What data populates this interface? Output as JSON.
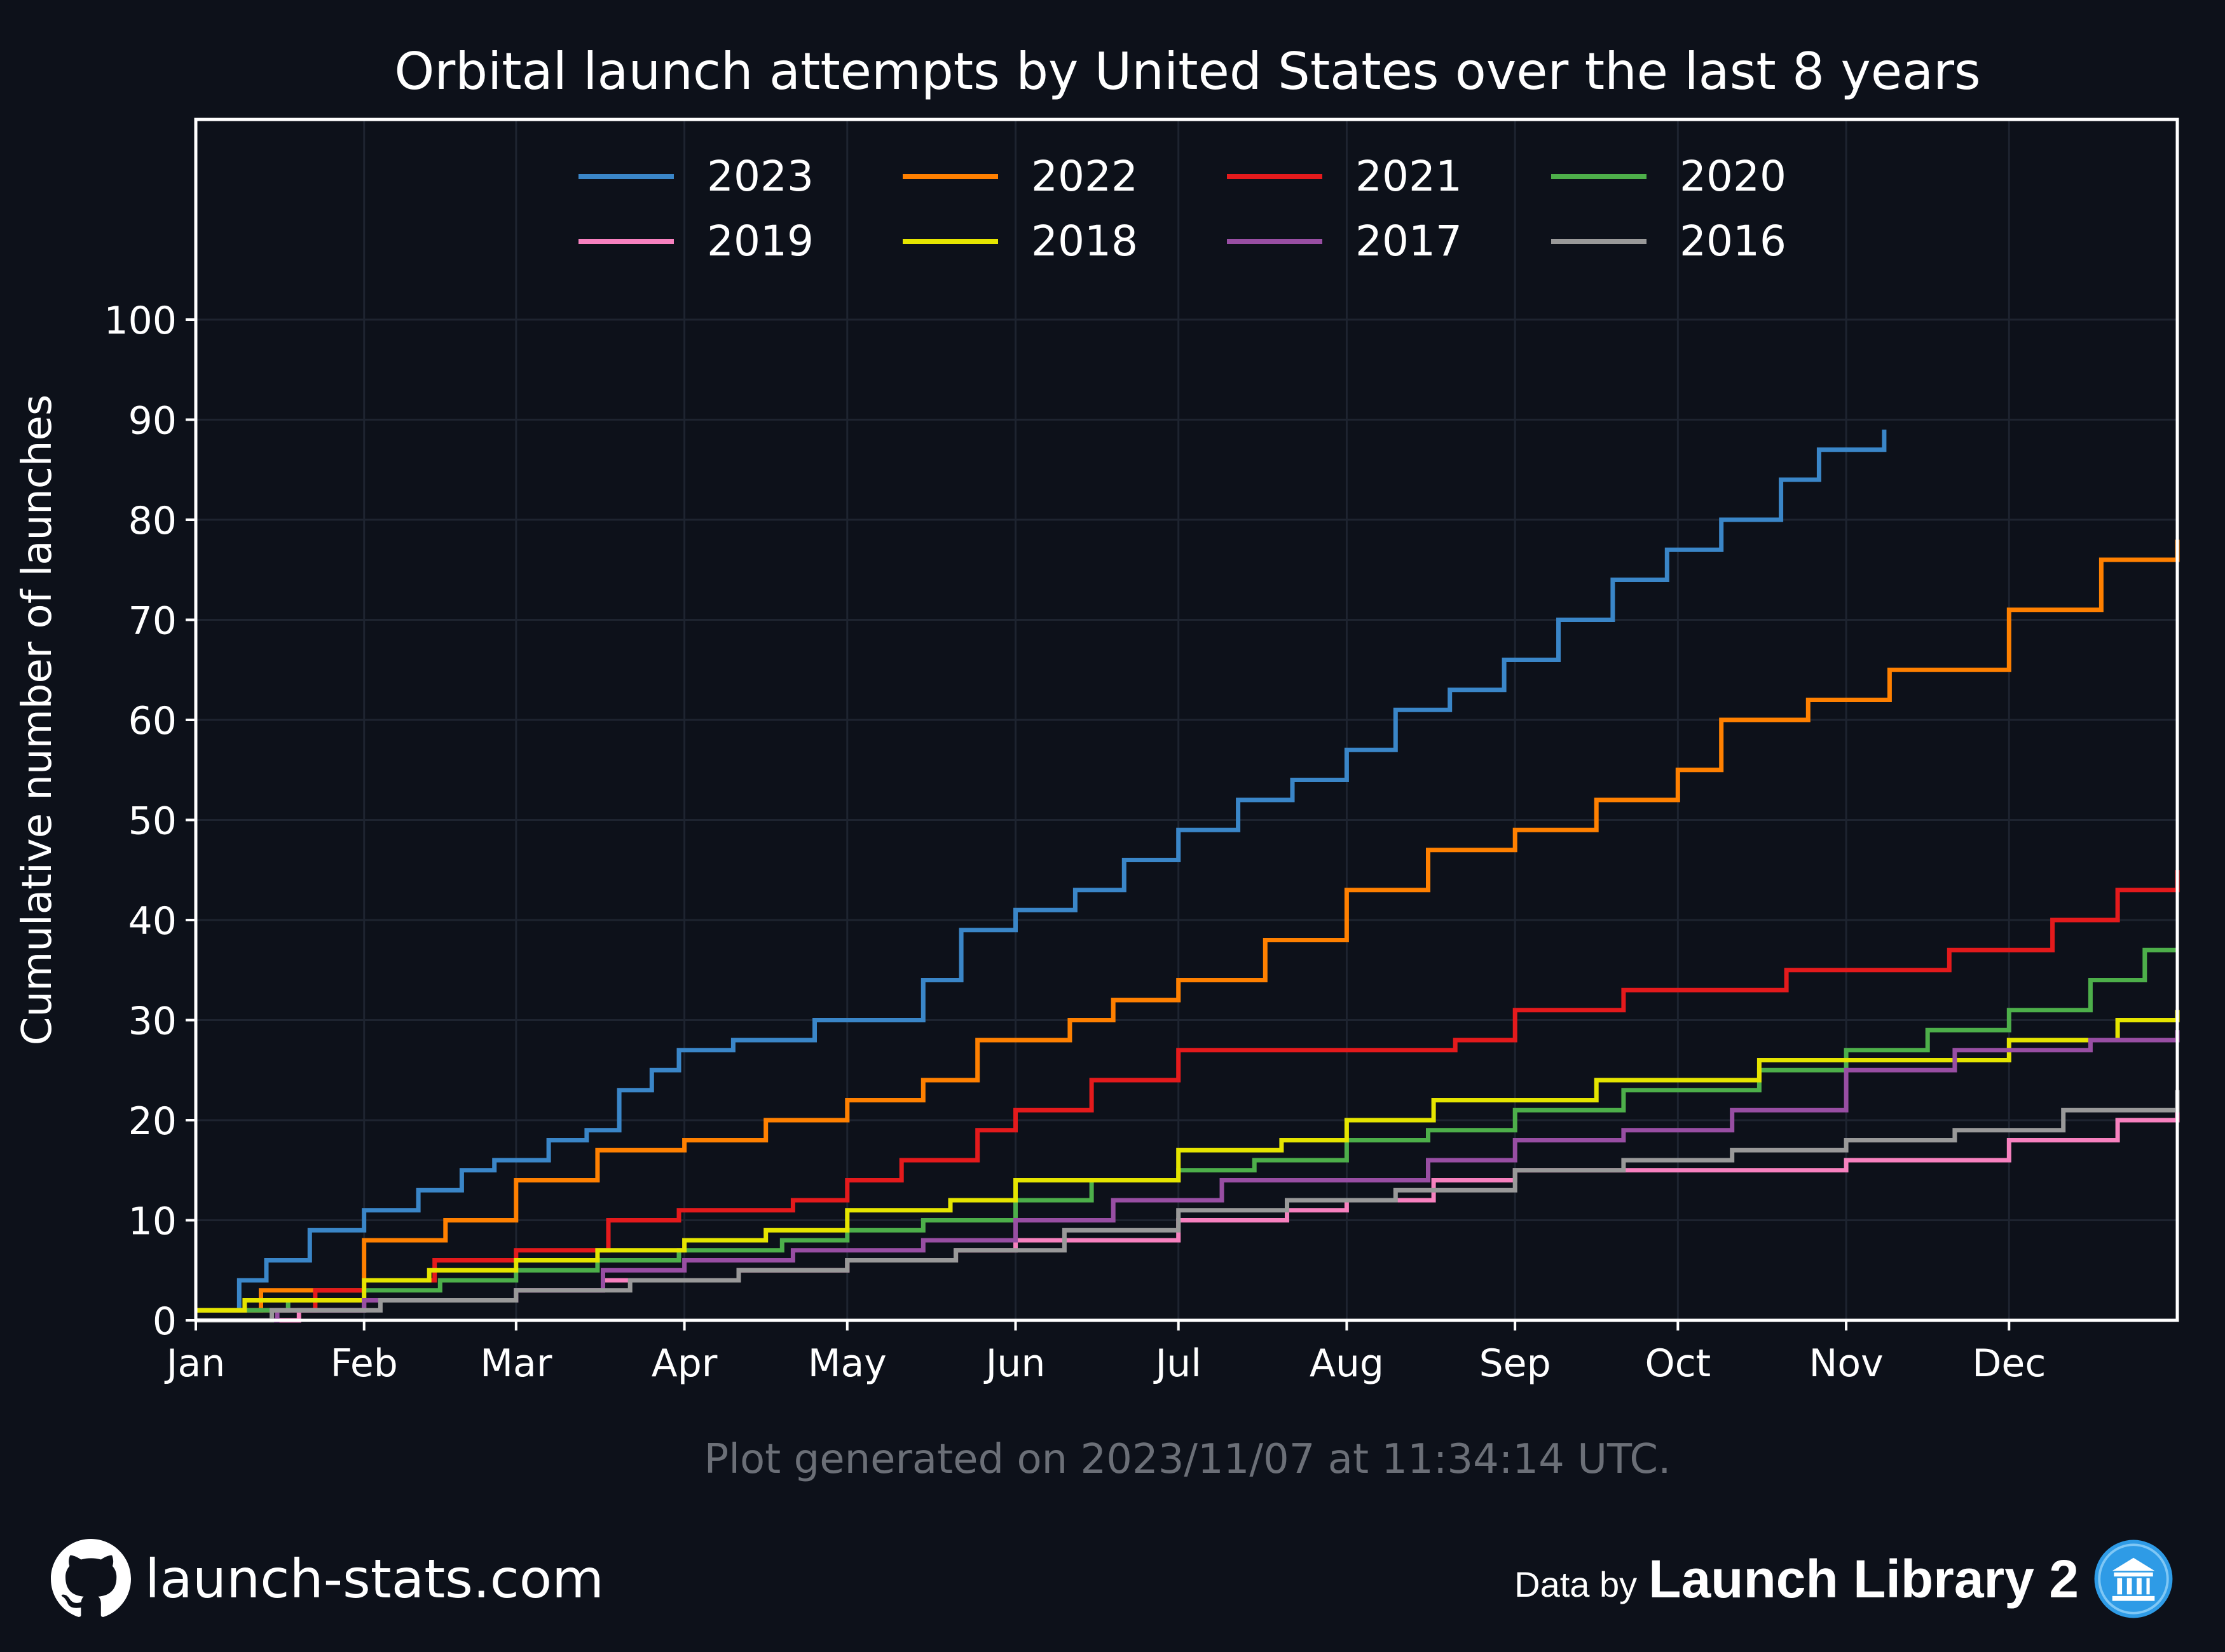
{
  "chart_data": {
    "type": "line",
    "title": "Orbital launch attempts by United States over the last 8 years",
    "ylabel": "Cumulative number of launches",
    "xlabel": "",
    "x_unit": "day of year",
    "xlim": [
      1,
      366
    ],
    "ylim": [
      0,
      120
    ],
    "yticks": [
      0,
      10,
      20,
      30,
      40,
      50,
      60,
      70,
      80,
      90,
      100
    ],
    "xticks": [
      {
        "label": "Jan",
        "day": 1
      },
      {
        "label": "Feb",
        "day": 32
      },
      {
        "label": "Mar",
        "day": 60
      },
      {
        "label": "Apr",
        "day": 91
      },
      {
        "label": "May",
        "day": 121
      },
      {
        "label": "Jun",
        "day": 152
      },
      {
        "label": "Jul",
        "day": 182
      },
      {
        "label": "Aug",
        "day": 213
      },
      {
        "label": "Sep",
        "day": 244
      },
      {
        "label": "Oct",
        "day": 274
      },
      {
        "label": "Nov",
        "day": 305
      },
      {
        "label": "Dec",
        "day": 335
      }
    ],
    "grid": true,
    "legend_position": "top-center",
    "series": [
      {
        "name": "2023",
        "color": "#3a86c8",
        "x": [
          1,
          9,
          14,
          22,
          32,
          42,
          50,
          56,
          66,
          73,
          79,
          85,
          90,
          100,
          115,
          135,
          142,
          152,
          163,
          172,
          182,
          193,
          203,
          213,
          222,
          232,
          242,
          252,
          262,
          272,
          282,
          293,
          300,
          312
        ],
        "y": [
          1,
          4,
          6,
          9,
          11,
          13,
          15,
          16,
          18,
          19,
          23,
          25,
          27,
          28,
          30,
          34,
          39,
          41,
          43,
          46,
          49,
          52,
          54,
          57,
          61,
          63,
          66,
          70,
          74,
          77,
          80,
          84,
          87,
          89
        ]
      },
      {
        "name": "2022",
        "color": "#ff8000",
        "x": [
          1,
          13,
          32,
          47,
          60,
          75,
          91,
          106,
          121,
          135,
          145,
          162,
          170,
          182,
          198,
          213,
          228,
          244,
          259,
          274,
          282,
          298,
          313,
          335,
          352,
          366
        ],
        "y": [
          1,
          3,
          8,
          10,
          14,
          17,
          18,
          20,
          22,
          24,
          28,
          30,
          32,
          34,
          38,
          43,
          47,
          49,
          52,
          55,
          60,
          62,
          65,
          71,
          76,
          78
        ]
      },
      {
        "name": "2021",
        "color": "#e41a1c",
        "x": [
          1,
          23,
          32,
          45,
          60,
          77,
          90,
          111,
          121,
          131,
          145,
          152,
          166,
          182,
          213,
          233,
          244,
          264,
          294,
          311,
          324,
          343,
          355,
          366
        ],
        "y": [
          1,
          3,
          4,
          6,
          7,
          10,
          11,
          12,
          14,
          16,
          19,
          21,
          24,
          27,
          27,
          28,
          31,
          33,
          35,
          35,
          37,
          40,
          43,
          45
        ]
      },
      {
        "name": "2020",
        "color": "#4daf4a",
        "x": [
          1,
          18,
          32,
          46,
          60,
          75,
          90,
          109,
          121,
          135,
          152,
          166,
          182,
          196,
          213,
          228,
          244,
          264,
          289,
          305,
          320,
          335,
          350,
          360,
          366
        ],
        "y": [
          1,
          2,
          3,
          4,
          5,
          6,
          7,
          8,
          9,
          10,
          12,
          14,
          15,
          16,
          18,
          19,
          21,
          23,
          25,
          27,
          29,
          31,
          34,
          37,
          37
        ]
      },
      {
        "name": "2019",
        "color": "#f781bf",
        "x": [
          1,
          20,
          32,
          51,
          60,
          76,
          91,
          101,
          121,
          141,
          152,
          182,
          202,
          213,
          229,
          244,
          284,
          305,
          335,
          355,
          366
        ],
        "y": [
          0,
          1,
          2,
          2,
          3,
          4,
          4,
          5,
          6,
          7,
          8,
          10,
          11,
          12,
          14,
          15,
          15,
          16,
          18,
          20,
          21
        ]
      },
      {
        "name": "2018",
        "color": "#e5e500",
        "x": [
          1,
          10,
          32,
          44,
          60,
          75,
          91,
          106,
          121,
          140,
          152,
          182,
          201,
          213,
          229,
          244,
          259,
          274,
          289,
          305,
          335,
          355,
          366
        ],
        "y": [
          1,
          2,
          4,
          5,
          6,
          7,
          8,
          9,
          11,
          12,
          14,
          17,
          18,
          20,
          22,
          22,
          24,
          24,
          26,
          26,
          28,
          30,
          31
        ]
      },
      {
        "name": "2017",
        "color": "#984ea3",
        "x": [
          1,
          16,
          32,
          60,
          76,
          91,
          111,
          135,
          152,
          170,
          190,
          213,
          228,
          244,
          264,
          284,
          305,
          325,
          350,
          366
        ],
        "y": [
          0,
          1,
          2,
          3,
          5,
          6,
          7,
          8,
          10,
          12,
          14,
          14,
          16,
          18,
          19,
          21,
          25,
          27,
          28,
          29
        ]
      },
      {
        "name": "2016",
        "color": "#999999",
        "x": [
          1,
          15,
          35,
          60,
          81,
          101,
          121,
          141,
          161,
          182,
          202,
          222,
          244,
          264,
          284,
          305,
          325,
          345,
          366
        ],
        "y": [
          0,
          1,
          2,
          3,
          4,
          5,
          6,
          7,
          9,
          11,
          12,
          13,
          15,
          16,
          17,
          18,
          19,
          21,
          23
        ]
      }
    ],
    "note": "Plot generated on 2023/11/07 at 11:34:14 UTC."
  },
  "footer": {
    "site": "launch-stats.com",
    "data_by": "Data by",
    "source": "Launch Library 2",
    "site_icon": "github-icon",
    "source_icon": "library-icon"
  },
  "colors": {
    "background": "#0d111a",
    "axes_frame": "#ffffff",
    "grid": "#1e2430",
    "note_text": "#6b6f77"
  }
}
